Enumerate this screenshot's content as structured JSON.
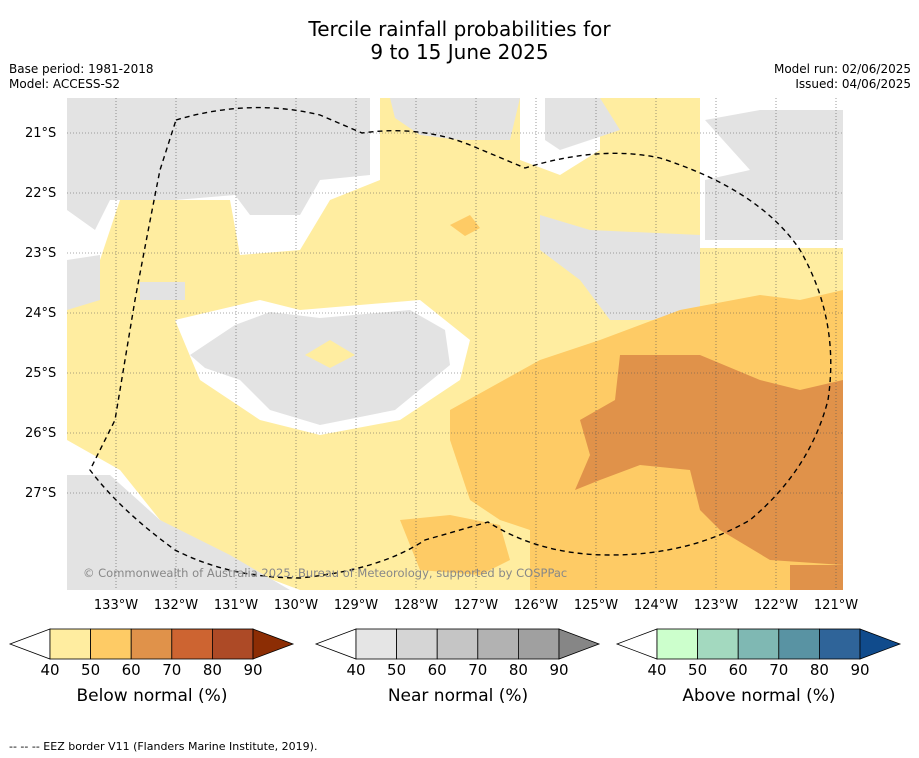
{
  "title_line1": "Tercile rainfall probabilities for",
  "title_line2": "9 to 15 June 2025",
  "meta": {
    "base_period": "Base period: 1981-2018",
    "model": "Model: ACCESS-S2",
    "model_run": "Model run: 02/06/2025",
    "issued": "Issued: 04/06/2025"
  },
  "map": {
    "lat_labels": [
      "21°S",
      "22°S",
      "23°S",
      "24°S",
      "25°S",
      "26°S",
      "27°S"
    ],
    "lon_labels": [
      "133°W",
      "132°W",
      "131°W",
      "130°W",
      "129°W",
      "128°W",
      "127°W",
      "126°W",
      "125°W",
      "124°W",
      "123°W",
      "122°W",
      "121°W"
    ],
    "copyright": "© Commonwealth of Australia 2025, Bureau of Meteorology, supported by COSPPac"
  },
  "colorbars": [
    {
      "title": "Below normal (%)",
      "ticks": [
        "40",
        "50",
        "60",
        "70",
        "80",
        "90"
      ],
      "colors": [
        "#ffeda0",
        "#fecb65",
        "#e0924a",
        "#cd6431",
        "#ad4a26",
        "#8c2d04"
      ]
    },
    {
      "title": "Near normal (%)",
      "ticks": [
        "40",
        "50",
        "60",
        "70",
        "80",
        "90"
      ],
      "colors": [
        "#e5e5e5",
        "#d5d5d5",
        "#c5c5c5",
        "#b2b2b2",
        "#a0a0a0",
        "#868686"
      ]
    },
    {
      "title": "Above normal (%)",
      "ticks": [
        "40",
        "50",
        "60",
        "70",
        "80",
        "90"
      ],
      "colors": [
        "#ccffcc",
        "#a3d9bf",
        "#7fb8b3",
        "#5993a3",
        "#2f6499",
        "#104b8c"
      ]
    }
  ],
  "colors": {
    "below_50": "#ffeda0",
    "below_60": "#fecb65",
    "below_70": "#e0924a",
    "near": "#e3e3e3"
  },
  "footnote": "--  --  -- EEZ border V11 (Flanders Marine Institute, 2019)."
}
